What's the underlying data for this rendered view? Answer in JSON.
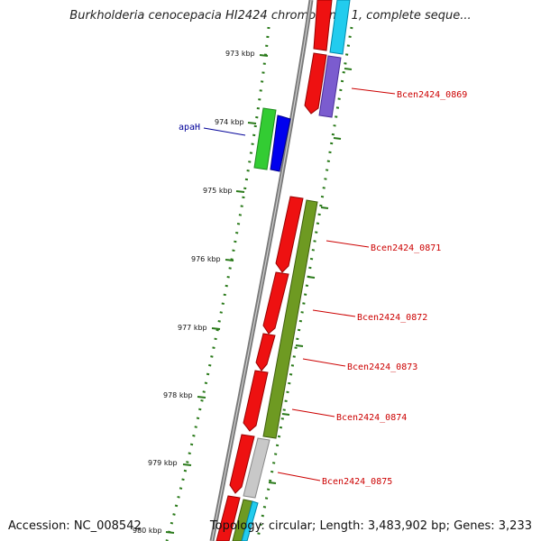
{
  "title": "Burkholderia cenocepacia HI2424 chromosome 1, complete seque...",
  "accession": "Accession: NC_008542",
  "summary": "Topology: circular; Length: 3,483,902 bp; Genes: 3,233",
  "colors": {
    "backbone": "#7a7a7a",
    "tick": "#2a7a1a",
    "forward_label": "#000099",
    "reverse_label": "#cc0000"
  },
  "ticks": [
    {
      "label": "973 kbp"
    },
    {
      "label": "974 kbp"
    },
    {
      "label": "975 kbp"
    },
    {
      "label": "976 kbp"
    },
    {
      "label": "977 kbp"
    },
    {
      "label": "978 kbp"
    },
    {
      "label": "979 kbp"
    },
    {
      "label": "980 kbp"
    }
  ],
  "genes": [
    {
      "name": "apaH",
      "strand": "forward",
      "label": "apaH"
    },
    {
      "name": "Bcen2424_0869",
      "strand": "reverse",
      "label": "Bcen2424_0869"
    },
    {
      "name": "Bcen2424_0871",
      "strand": "reverse",
      "label": "Bcen2424_0871"
    },
    {
      "name": "Bcen2424_0872",
      "strand": "reverse",
      "label": "Bcen2424_0872"
    },
    {
      "name": "Bcen2424_0873",
      "strand": "reverse",
      "label": "Bcen2424_0873"
    },
    {
      "name": "Bcen2424_0874",
      "strand": "reverse",
      "label": "Bcen2424_0874"
    },
    {
      "name": "Bcen2424_0875",
      "strand": "reverse",
      "label": "Bcen2424_0875"
    }
  ]
}
